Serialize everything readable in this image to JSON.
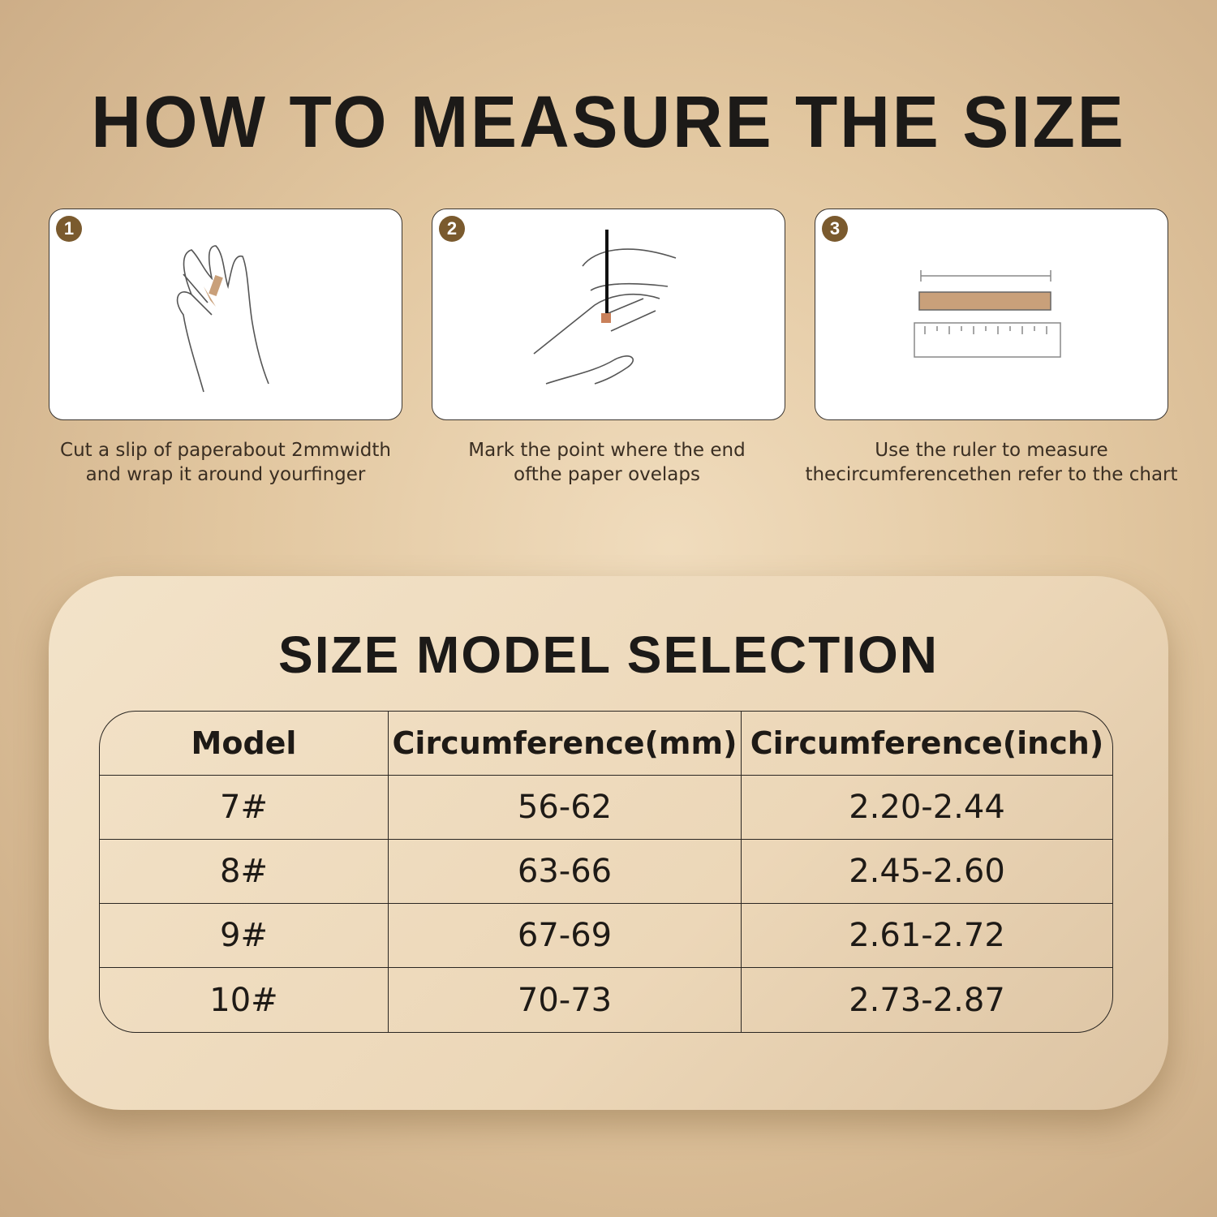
{
  "title": "HOW TO MEASURE THE SIZE",
  "steps": [
    {
      "number": "1",
      "caption_line1": "Cut a slip of paperabout 2mmwidth",
      "caption_line2": "and wrap it around yourfinger"
    },
    {
      "number": "2",
      "caption_line1": "Mark the point where the end",
      "caption_line2": "ofthe paper ovelaps"
    },
    {
      "number": "3",
      "caption_line1": "Use the ruler to measure",
      "caption_line2": "thecircumferencethen refer to the chart"
    }
  ],
  "size_section": {
    "title": "SIZE MODEL SELECTION",
    "headers": [
      "Model",
      "Circumference(mm)",
      "Circumference(inch)"
    ],
    "rows": [
      [
        "7#",
        "56-62",
        "2.20-2.44"
      ],
      [
        "8#",
        "63-66",
        "2.45-2.60"
      ],
      [
        "9#",
        "67-69",
        "2.61-2.72"
      ],
      [
        "10#",
        "70-73",
        "2.73-2.87"
      ]
    ]
  },
  "colors": {
    "badge": "#7a5a2e",
    "paper": "#c9a07a"
  }
}
